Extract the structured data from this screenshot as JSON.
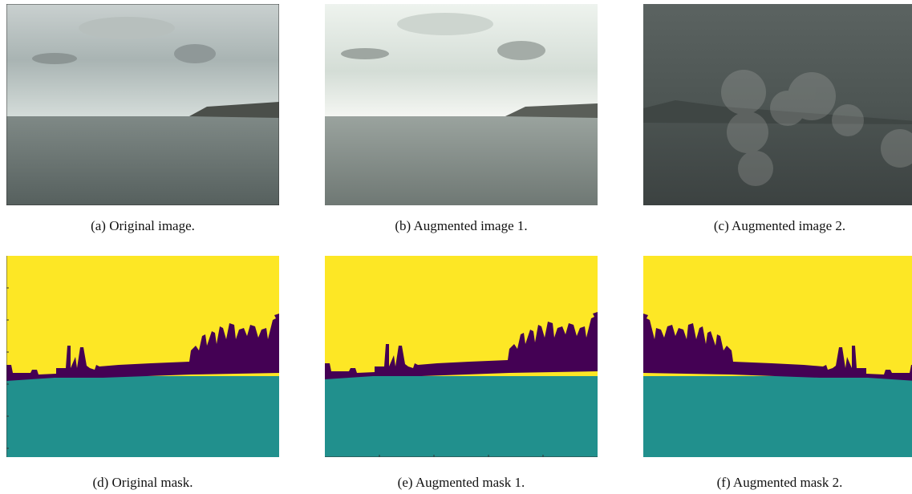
{
  "panels": [
    {
      "caption": "(a) Original image."
    },
    {
      "caption": "(b) Augmented image 1."
    },
    {
      "caption": "(c) Augmented image 2."
    },
    {
      "caption": "(d) Original mask."
    },
    {
      "caption": "(e) Augmented mask 1."
    },
    {
      "caption": "(f) Augmented mask 2."
    }
  ]
}
